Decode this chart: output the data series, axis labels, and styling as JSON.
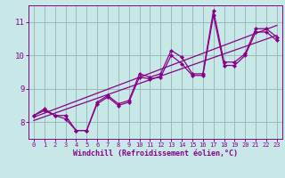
{
  "bg_color": "#c8e8e8",
  "line_color": "#880088",
  "grid_color": "#99bbbb",
  "xlabel": "Windchill (Refroidissement éolien,°C)",
  "xlabel_color": "#880088",
  "tick_color": "#880088",
  "xlim": [
    -0.5,
    23.5
  ],
  "ylim": [
    7.5,
    11.5
  ],
  "yticks": [
    8,
    9,
    10,
    11
  ],
  "xticks": [
    0,
    1,
    2,
    3,
    4,
    5,
    6,
    7,
    8,
    9,
    10,
    11,
    12,
    13,
    14,
    15,
    16,
    17,
    18,
    19,
    20,
    21,
    22,
    23
  ],
  "lines": [
    {
      "x": [
        0,
        23
      ],
      "y": [
        8.15,
        10.9
      ]
    },
    {
      "x": [
        0,
        23
      ],
      "y": [
        8.05,
        10.6
      ]
    },
    {
      "x": [
        0,
        1,
        2,
        3,
        4,
        5,
        6,
        7,
        8,
        9,
        10,
        11,
        12,
        13,
        14,
        15,
        16,
        17,
        18,
        19,
        20,
        21,
        22,
        23
      ],
      "y": [
        8.2,
        8.4,
        8.2,
        8.2,
        7.75,
        7.75,
        8.6,
        8.8,
        8.55,
        8.65,
        9.45,
        9.35,
        9.45,
        10.15,
        9.95,
        9.45,
        9.45,
        11.35,
        9.8,
        9.8,
        10.05,
        10.8,
        10.8,
        10.55
      ],
      "marker": true
    },
    {
      "x": [
        0,
        1,
        2,
        3,
        4,
        5,
        6,
        7,
        8,
        9,
        10,
        11,
        12,
        13,
        14,
        15,
        16,
        17,
        18,
        19,
        20,
        21,
        22,
        23
      ],
      "y": [
        8.2,
        8.35,
        8.2,
        8.1,
        7.75,
        7.75,
        8.55,
        8.75,
        8.5,
        8.6,
        9.35,
        9.3,
        9.35,
        10.0,
        9.75,
        9.4,
        9.4,
        11.2,
        9.7,
        9.7,
        10.0,
        10.7,
        10.7,
        10.45
      ],
      "marker": true
    }
  ]
}
